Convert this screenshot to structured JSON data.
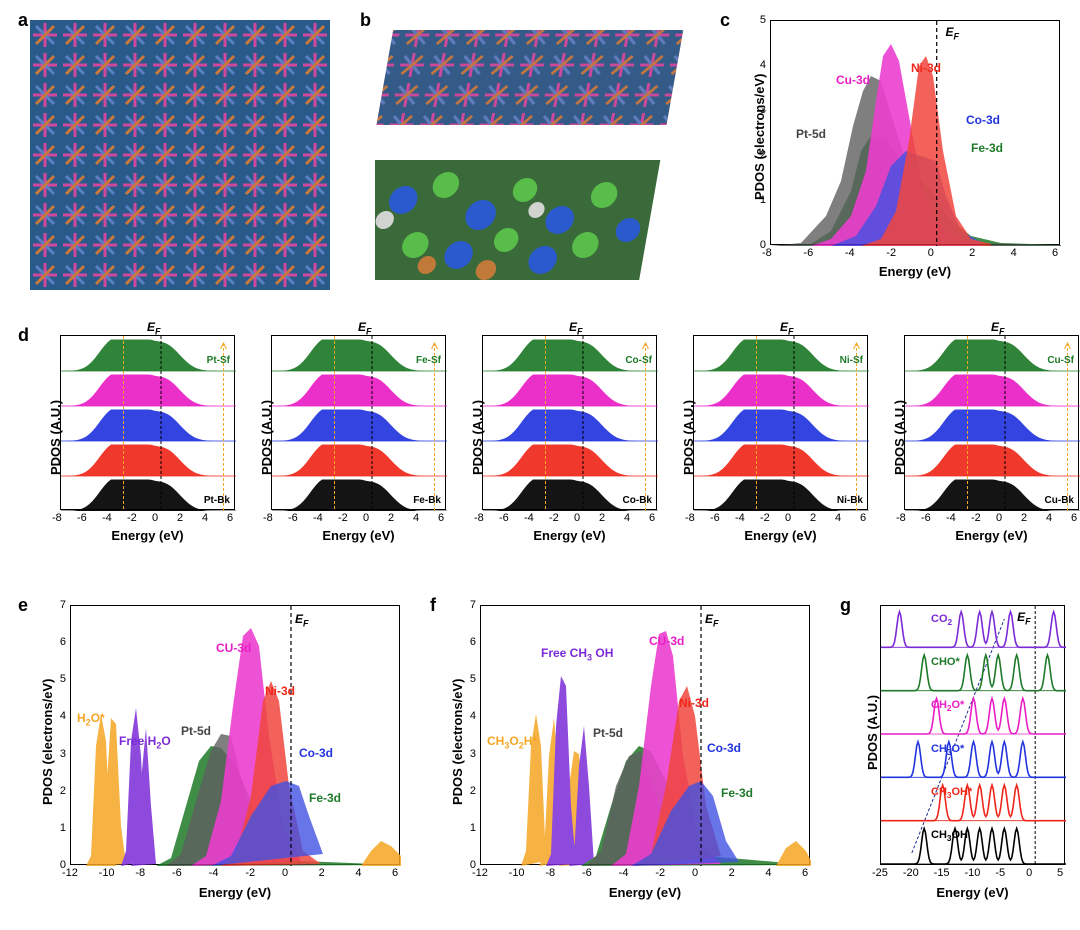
{
  "panels": {
    "a": {
      "label": "a"
    },
    "b": {
      "label": "b"
    },
    "c": {
      "label": "c",
      "xlabel": "Energy (eV)",
      "ylabel": "PDOS (electrons/eV)",
      "xlim": [
        -8,
        6
      ],
      "xtick_step": 2,
      "ylim": [
        0,
        5
      ],
      "ytick_step": 1,
      "ef_label": "E",
      "ef_sub": "F",
      "series": [
        {
          "name": "Pt-5d",
          "color": "#444444",
          "label_x": -6,
          "label_y": 2.5
        },
        {
          "name": "Cu-3d",
          "color": "#e91ec6",
          "label_x": -4,
          "label_y": 3.6
        },
        {
          "name": "Ni-3d",
          "color": "#ef271b",
          "label_x": -1.2,
          "label_y": 3.8
        },
        {
          "name": "Co-3d",
          "color": "#2234dd",
          "label_x": 1.2,
          "label_y": 2.6
        },
        {
          "name": "Fe-3d",
          "color": "#1e7a28",
          "label_x": 1.8,
          "label_y": 1.9
        }
      ]
    },
    "d": {
      "label": "d",
      "xlabel": "Energy (eV)",
      "ylabel": "PDOS (A.U.)",
      "xlim": [
        -8,
        6
      ],
      "xtick_step": 2,
      "ef_label": "E",
      "ef_sub": "F",
      "subplots": [
        {
          "top_label": "Pt-Sf",
          "bot_label": "Pt-Bk"
        },
        {
          "top_label": "Fe-Sf",
          "bot_label": "Fe-Bk"
        },
        {
          "top_label": "Co-Sf",
          "bot_label": "Co-Bk"
        },
        {
          "top_label": "Ni-Sf",
          "bot_label": "Ni-Bk"
        },
        {
          "top_label": "Cu-Sf",
          "bot_label": "Cu-Bk"
        }
      ],
      "row_colors": [
        "#1e7a28",
        "#e91ec6",
        "#2234dd",
        "#ef271b",
        "#000000"
      ]
    },
    "e": {
      "label": "e",
      "xlabel": "Energy (eV)",
      "ylabel": "PDOS (electrons/eV)",
      "xlim": [
        -12,
        6
      ],
      "xtick_step": 2,
      "ylim": [
        0,
        7
      ],
      "ytick_step": 1,
      "ef_label": "E",
      "ef_sub": "F",
      "series": [
        {
          "name": "H₂O*",
          "color": "#f5a623",
          "label": "H",
          "sub1": "2",
          "tail": "O*"
        },
        {
          "name": "Free H₂O",
          "color": "#7b2bd6",
          "label": "Free H",
          "sub1": "2",
          "tail": "O"
        },
        {
          "name": "Pt-5d",
          "color": "#444444"
        },
        {
          "name": "CU-3d",
          "color": "#e91ec6"
        },
        {
          "name": "Ni-3d",
          "color": "#ef271b"
        },
        {
          "name": "Co-3d",
          "color": "#2234dd"
        },
        {
          "name": "Fe-3d",
          "color": "#1e7a28"
        }
      ]
    },
    "f": {
      "label": "f",
      "xlabel": "Energy (eV)",
      "ylabel": "PDOS (electrons/eV)",
      "xlim": [
        -12,
        6
      ],
      "xtick_step": 2,
      "ylim": [
        0,
        7
      ],
      "ytick_step": 1,
      "ef_label": "E",
      "ef_sub": "F",
      "series": [
        {
          "name": "CH₃O₂H*",
          "color": "#f5a623"
        },
        {
          "name": "Free CH₃ OH",
          "color": "#7b2bd6"
        },
        {
          "name": "Pt-5d",
          "color": "#444444"
        },
        {
          "name": "CU-3d",
          "color": "#e91ec6"
        },
        {
          "name": "Ni-3d",
          "color": "#ef271b"
        },
        {
          "name": "Co-3d",
          "color": "#2234dd"
        },
        {
          "name": "Fe-3d",
          "color": "#1e7a28"
        }
      ]
    },
    "g": {
      "label": "g",
      "xlabel": "Energy (eV)",
      "ylabel": "PDOS (A.U.)",
      "xlim": [
        -25,
        5
      ],
      "xtick_step": 5,
      "ef_label": "E",
      "ef_sub": "F",
      "rows": [
        {
          "label": "CO",
          "sub": "2",
          "tail": "",
          "color": "#7b2bd6"
        },
        {
          "label": "CHO*",
          "sub": "",
          "tail": "",
          "color": "#1e7a28"
        },
        {
          "label": "CH",
          "sub": "2",
          "tail": "O*",
          "color": "#e91ec6"
        },
        {
          "label": "CH",
          "sub": "3",
          "tail": "O*",
          "color": "#2234dd"
        },
        {
          "label": "CH",
          "sub": "3",
          "tail": "OH*",
          "color": "#ef271b"
        },
        {
          "label": "CH",
          "sub": "3",
          "tail": "OH",
          "color": "#000000"
        }
      ]
    }
  },
  "colors": {
    "orange_dash": "#f5a623",
    "magenta_dash": "#e91ec6",
    "blue_dash": "#4a6fd8",
    "dark_blue_dash": "#1c2a8f"
  }
}
